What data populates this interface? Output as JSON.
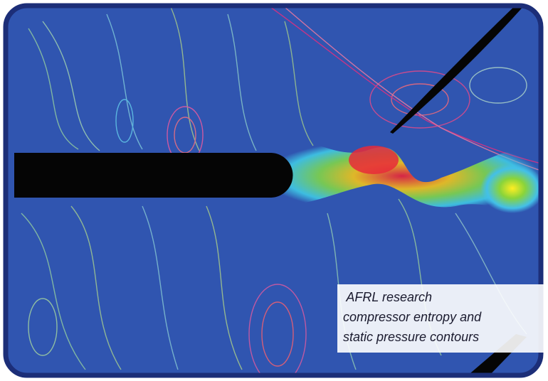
{
  "caption": {
    "lines": [
      " AFRL research",
      "compressor entropy and",
      "static pressure contours"
    ]
  }
}
